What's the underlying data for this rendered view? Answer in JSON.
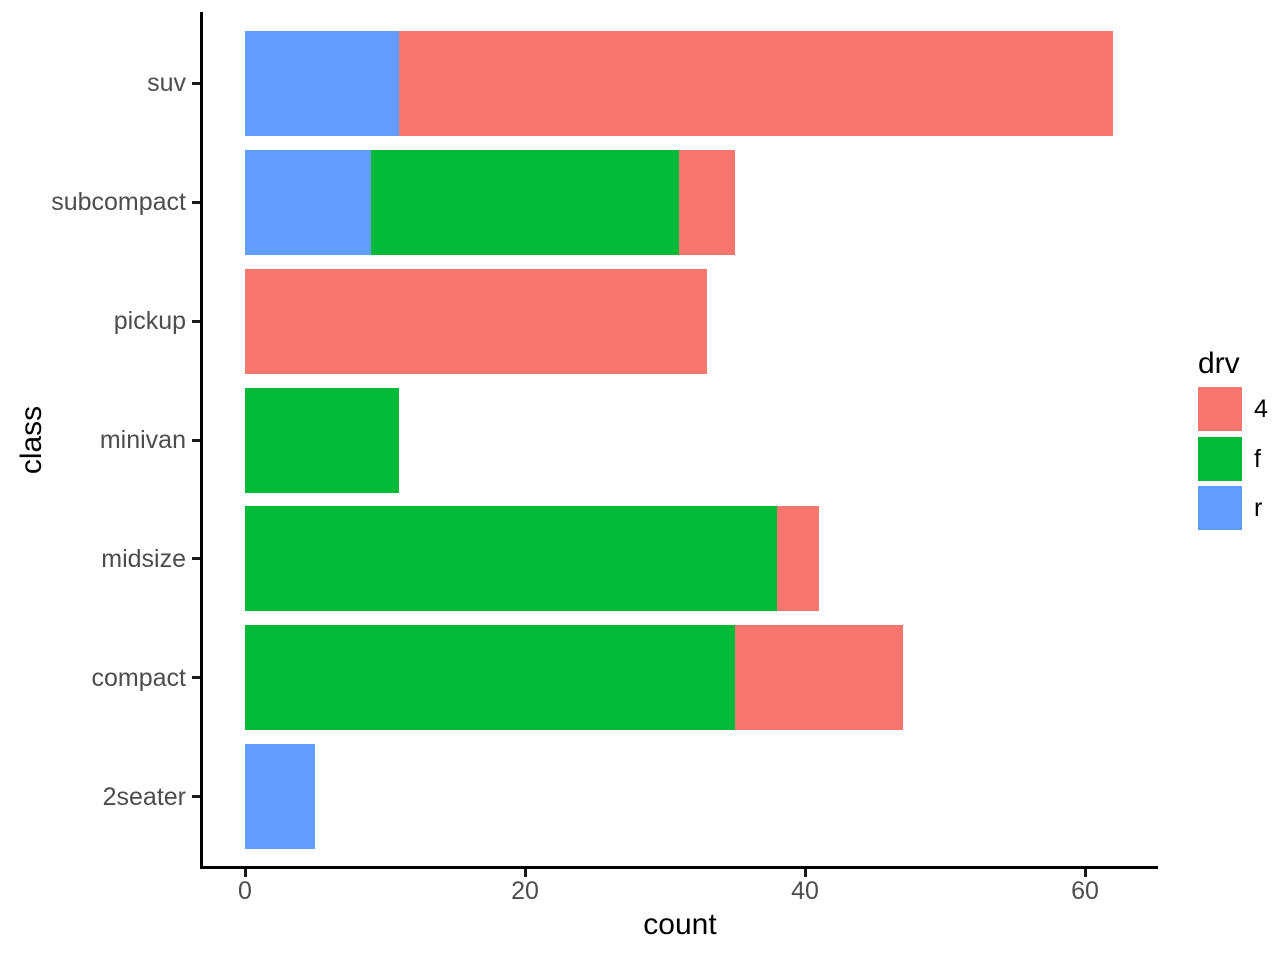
{
  "chart_data": {
    "type": "bar",
    "orientation": "horizontal",
    "stacked": true,
    "title": "",
    "xlabel": "count",
    "ylabel": "class",
    "x_tick_labels": [
      "0",
      "20",
      "40",
      "60"
    ],
    "x_tick_values": [
      0,
      20,
      40,
      60
    ],
    "xlim": [
      -3.1,
      65.1
    ],
    "grid": false,
    "background": "#FFFFFF",
    "axis_text_color": "#4D4D4D",
    "axis_line_color": "#000000",
    "legend": {
      "title": "drv",
      "position": "right",
      "entries": [
        {
          "label": "4",
          "color": "#F8766D"
        },
        {
          "label": "f",
          "color": "#00BA38"
        },
        {
          "label": "r",
          "color": "#619CFF"
        }
      ]
    },
    "colors": {
      "4": "#F8766D",
      "f": "#00BA38",
      "r": "#619CFF"
    },
    "categories_top_to_bottom": [
      "suv",
      "subcompact",
      "pickup",
      "minivan",
      "midsize",
      "compact",
      "2seater"
    ],
    "rows": [
      {
        "category": "suv",
        "segments": [
          {
            "drv": "r",
            "value": 11
          },
          {
            "drv": "4",
            "value": 51
          }
        ],
        "total": 62
      },
      {
        "category": "subcompact",
        "segments": [
          {
            "drv": "r",
            "value": 9
          },
          {
            "drv": "f",
            "value": 22
          },
          {
            "drv": "4",
            "value": 4
          }
        ],
        "total": 35
      },
      {
        "category": "pickup",
        "segments": [
          {
            "drv": "4",
            "value": 33
          }
        ],
        "total": 33
      },
      {
        "category": "minivan",
        "segments": [
          {
            "drv": "f",
            "value": 11
          }
        ],
        "total": 11
      },
      {
        "category": "midsize",
        "segments": [
          {
            "drv": "f",
            "value": 38
          },
          {
            "drv": "4",
            "value": 3
          }
        ],
        "total": 41
      },
      {
        "category": "compact",
        "segments": [
          {
            "drv": "f",
            "value": 35
          },
          {
            "drv": "4",
            "value": 12
          }
        ],
        "total": 47
      },
      {
        "category": "2seater",
        "segments": [
          {
            "drv": "r",
            "value": 5
          }
        ],
        "total": 5
      }
    ]
  }
}
